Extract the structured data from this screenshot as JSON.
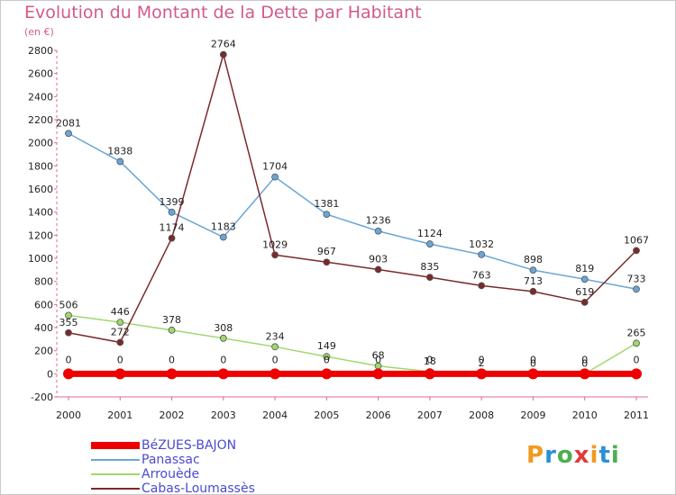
{
  "title": "Evolution du Montant de la Dette par Habitant",
  "subtitle": "(en €)",
  "logo": {
    "text": "Proxiti",
    "colors": [
      "#f29a1f",
      "#2a8fd6",
      "#4caf50",
      "#e03a3a",
      "#f29a1f",
      "#2a8fd6",
      "#4caf50"
    ]
  },
  "chart_data": {
    "type": "line",
    "x": [
      "2000",
      "2001",
      "2002",
      "2003",
      "2004",
      "2005",
      "2006",
      "2007",
      "2008",
      "2009",
      "2010",
      "2011"
    ],
    "ylim": [
      -200,
      2800
    ],
    "yticks": [
      "-200",
      "0",
      "200",
      "400",
      "600",
      "800",
      "1000",
      "1200",
      "1400",
      "1600",
      "1800",
      "2000",
      "2200",
      "2400",
      "2600",
      "2800"
    ],
    "ytick_values": [
      -200,
      0,
      200,
      400,
      600,
      800,
      1000,
      1200,
      1400,
      1600,
      1800,
      2000,
      2200,
      2400,
      2600,
      2800
    ],
    "grid": false,
    "legend_position": "bottom-left",
    "series": [
      {
        "name": "BéZUES-BAJON",
        "color": "#ee0000",
        "values": [
          0,
          0,
          0,
          0,
          0,
          0,
          0,
          0,
          0,
          0,
          0,
          0
        ],
        "labels": [
          "0",
          "0",
          "0",
          "0",
          "0",
          "0",
          "0",
          "0",
          "0",
          "0",
          "0",
          "0"
        ]
      },
      {
        "name": "Panassac",
        "color": "#6aa6d6",
        "values": [
          2081,
          1838,
          1399,
          1183,
          1704,
          1381,
          1236,
          1124,
          1032,
          898,
          819,
          733
        ],
        "labels": [
          "2081",
          "1838",
          "1399",
          "1183",
          "1704",
          "1381",
          "1236",
          "1124",
          "1032",
          "898",
          "819",
          "733"
        ]
      },
      {
        "name": "Arrouède",
        "color": "#9fd86e",
        "values": [
          506,
          446,
          378,
          308,
          234,
          149,
          68,
          18,
          2,
          0,
          0,
          265
        ],
        "labels": [
          "506",
          "446",
          "378",
          "308",
          "234",
          "149",
          "68",
          "18",
          "2",
          "0",
          "0",
          "265"
        ]
      },
      {
        "name": "Cabas-Loumassès",
        "color": "#7a2a2a",
        "values": [
          355,
          272,
          1174,
          2764,
          1029,
          967,
          903,
          835,
          763,
          713,
          619,
          1067
        ],
        "labels": [
          "355",
          "272",
          "1174",
          "2764",
          "1029",
          "967",
          "903",
          "835",
          "763",
          "713",
          "619",
          "1067"
        ]
      }
    ]
  }
}
